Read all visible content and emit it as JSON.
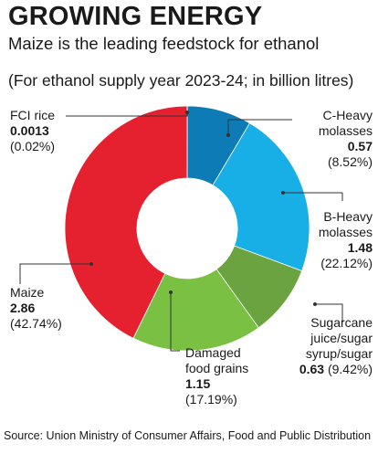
{
  "header": {
    "title": "GROWING ENERGY",
    "subtitle": "Maize is the leading feedstock for ethanol",
    "note": "(For ethanol supply year 2023-24; in billion litres)"
  },
  "source": "Source: Union Ministry of Consumer Affairs, Food and Public Distribution",
  "colors": {
    "fci_rice": "#0a3d62",
    "c_heavy": "#0d7bb5",
    "b_heavy": "#18aee6",
    "sugarcane": "#6aa340",
    "damaged_grains": "#79c043",
    "maize": "#e5202f"
  },
  "chart_data": {
    "type": "pie",
    "donut": true,
    "unit": "billion litres",
    "slices": [
      {
        "key": "fci_rice",
        "name_lines": [
          "FCI rice"
        ],
        "value": 0.0013,
        "value_label": "0.0013",
        "percent": 0.02,
        "percent_label": "(0.02%)",
        "color": "#0a3d62"
      },
      {
        "key": "c_heavy",
        "name_lines": [
          "C-Heavy",
          "molasses"
        ],
        "value": 0.57,
        "value_label": "0.57",
        "percent": 8.52,
        "percent_label": "(8.52%)",
        "color": "#0d7bb5"
      },
      {
        "key": "b_heavy",
        "name_lines": [
          "B-Heavy",
          "molasses"
        ],
        "value": 1.48,
        "value_label": "1.48",
        "percent": 22.12,
        "percent_label": "(22.12%)",
        "color": "#18aee6"
      },
      {
        "key": "sugarcane",
        "name_lines": [
          "Sugarcane",
          "juice/sugar",
          "syrup/sugar"
        ],
        "value": 0.63,
        "value_label": "0.63",
        "percent": 9.42,
        "percent_label": "(9.42%)",
        "color": "#6aa340"
      },
      {
        "key": "damaged_grains",
        "name_lines": [
          "Damaged",
          "food grains"
        ],
        "value": 1.15,
        "value_label": "1.15",
        "percent": 17.19,
        "percent_label": "(17.19%)",
        "color": "#79c043"
      },
      {
        "key": "maize",
        "name_lines": [
          "Maize"
        ],
        "value": 2.86,
        "value_label": "2.86",
        "percent": 42.74,
        "percent_label": "(42.74%)",
        "color": "#e5202f"
      }
    ]
  }
}
